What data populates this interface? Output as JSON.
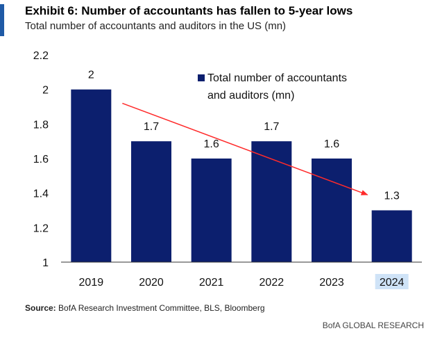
{
  "chart_data": {
    "type": "bar",
    "title": "Exhibit 6: Number of accountants has fallen to 5-year lows",
    "subtitle": "Total number of accountants and auditors in the US (mn)",
    "categories": [
      "2019",
      "2020",
      "2021",
      "2022",
      "2023",
      "2024"
    ],
    "series": [
      {
        "name": "Total number of accountants and auditors (mn)",
        "values": [
          2,
          1.7,
          1.6,
          1.7,
          1.6,
          1.3
        ],
        "color": "#0c1f6e"
      }
    ],
    "data_labels": [
      "2",
      "1.7",
      "1.6",
      "1.7",
      "1.6",
      "1.3"
    ],
    "ylim": [
      1,
      2.2
    ],
    "yticks": [
      "1",
      "1.2",
      "1.4",
      "1.6",
      "1.8",
      "2",
      "2.2"
    ],
    "grid": false,
    "legend": {
      "placement": "top-right",
      "lines": [
        "Total number of accountants",
        "and auditors (mn)"
      ]
    },
    "annotation": {
      "type": "trend-arrow",
      "color": "#ff2a2a",
      "from": {
        "category": "2019",
        "value": 1.92
      },
      "to": {
        "category": "2024",
        "value": 1.39
      }
    },
    "highlighted_category": "2024",
    "source_label": "Source:",
    "source_text": " BofA Research Investment Committee, BLS, Bloomberg",
    "brand": "BofA GLOBAL RESEARCH"
  }
}
